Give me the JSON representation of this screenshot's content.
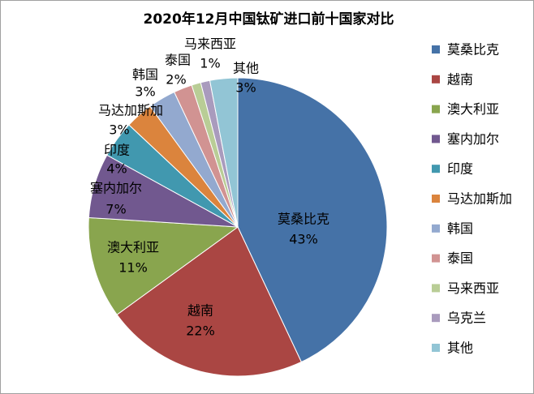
{
  "chart_data": {
    "type": "pie",
    "title": "2020年12月中国钛矿进口前十国家对比",
    "legend_position": "right",
    "slices": [
      {
        "label": "莫桑比克",
        "value": 43,
        "value_label": "43%",
        "color": "#4572A7",
        "show_label": true
      },
      {
        "label": "越南",
        "value": 22,
        "value_label": "22%",
        "color": "#AA4643",
        "show_label": true
      },
      {
        "label": "澳大利亚",
        "value": 11,
        "value_label": "11%",
        "color": "#89A54E",
        "show_label": true
      },
      {
        "label": "塞内加尔",
        "value": 7,
        "value_label": "7%",
        "color": "#71588F",
        "show_label": true
      },
      {
        "label": "印度",
        "value": 4,
        "value_label": "4%",
        "color": "#4198AF",
        "show_label": true
      },
      {
        "label": "马达加斯加",
        "value": 3,
        "value_label": "3%",
        "color": "#DB843D",
        "show_label": true
      },
      {
        "label": "韩国",
        "value": 3,
        "value_label": "3%",
        "color": "#93A9CF",
        "show_label": true
      },
      {
        "label": "泰国",
        "value": 2,
        "value_label": "2%",
        "color": "#D19392",
        "show_label": true
      },
      {
        "label": "马来西亚",
        "value": 1,
        "value_label": "1%",
        "color": "#B9CD96",
        "show_label": true
      },
      {
        "label": "乌克兰",
        "value": 1,
        "value_label": "",
        "color": "#A99BBD",
        "show_label": false
      },
      {
        "label": "其他",
        "value": 3,
        "value_label": "3%",
        "color": "#92C5D5",
        "show_label": true
      }
    ]
  }
}
